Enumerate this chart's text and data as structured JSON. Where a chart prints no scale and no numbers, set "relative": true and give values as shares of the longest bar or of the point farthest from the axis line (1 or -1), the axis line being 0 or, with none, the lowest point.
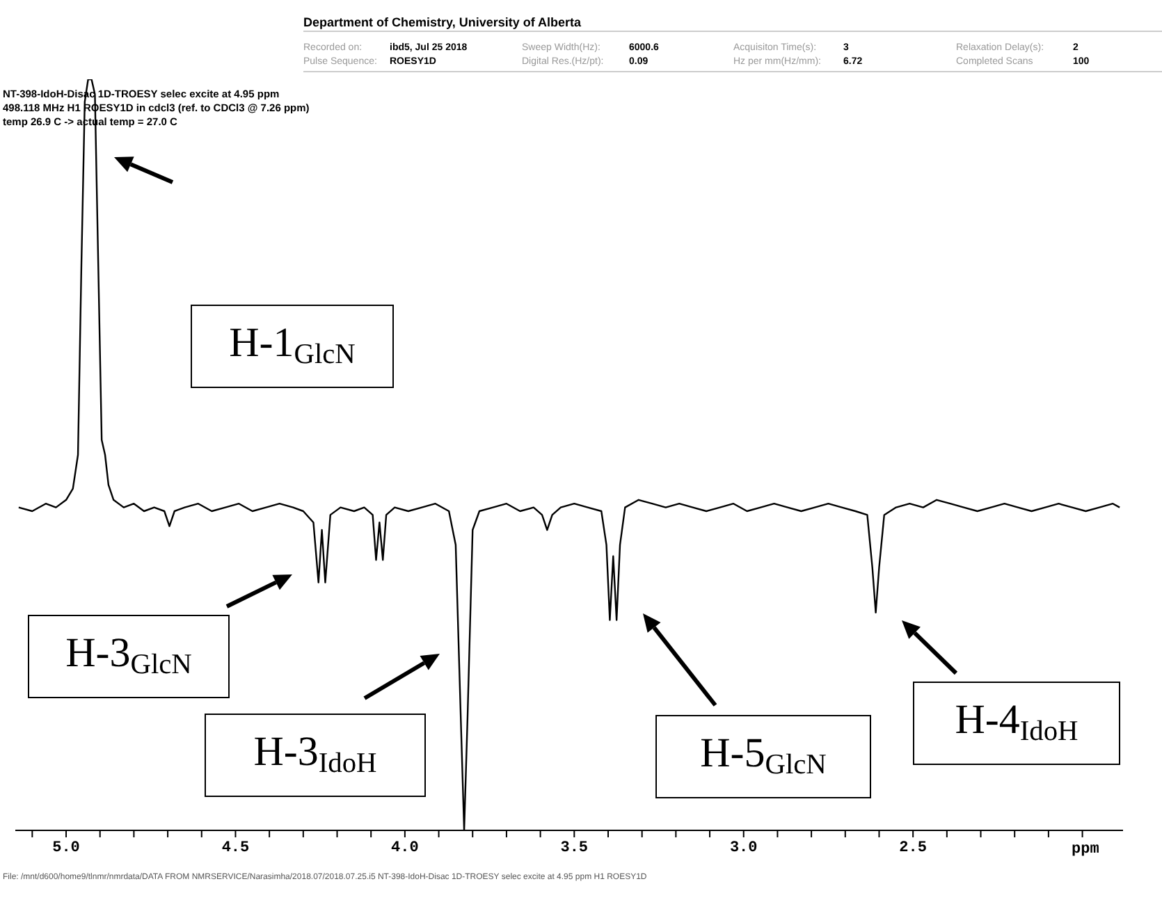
{
  "chart_data": {
    "type": "line",
    "relative": true,
    "color": "#000000",
    "line_style": "solid",
    "xlabel": "ppm",
    "xlim": [
      5.15,
      1.88
    ],
    "xticks": [
      {
        "value": 5.1,
        "label": null
      },
      {
        "value": 5,
        "label": "5.0"
      },
      {
        "value": 4.9,
        "label": null
      },
      {
        "value": 4.8,
        "label": null
      },
      {
        "value": 4.7,
        "label": null
      },
      {
        "value": 4.6,
        "label": null
      },
      {
        "value": 4.5,
        "label": "4.5"
      },
      {
        "value": 4.4,
        "label": null
      },
      {
        "value": 4.3,
        "label": null
      },
      {
        "value": 4.2,
        "label": null
      },
      {
        "value": 4.1,
        "label": null
      },
      {
        "value": 4,
        "label": "4.0"
      },
      {
        "value": 3.9,
        "label": null
      },
      {
        "value": 3.8,
        "label": null
      },
      {
        "value": 3.7,
        "label": null
      },
      {
        "value": 3.6,
        "label": null
      },
      {
        "value": 3.5,
        "label": "3.5"
      },
      {
        "value": 3.4,
        "label": null
      },
      {
        "value": 3.3,
        "label": null
      },
      {
        "value": 3.2,
        "label": null
      },
      {
        "value": 3.1,
        "label": null
      },
      {
        "value": 3,
        "label": "3.0"
      },
      {
        "value": 2.9,
        "label": null
      },
      {
        "value": 2.8,
        "label": null
      },
      {
        "value": 2.7,
        "label": null
      },
      {
        "value": 2.6,
        "label": null
      },
      {
        "value": 2.5,
        "label": "2.5"
      },
      {
        "value": 2.4,
        "label": null
      },
      {
        "value": 2.3,
        "label": null
      },
      {
        "value": 2.2,
        "label": null
      },
      {
        "value": 2.1,
        "label": null
      },
      {
        "value": 2,
        "label": null
      }
    ],
    "x": [
      5.14,
      5.1,
      5.06,
      5.03,
      5.0,
      4.98,
      4.965,
      4.955,
      4.945,
      4.935,
      4.925,
      4.915,
      4.905,
      4.895,
      4.885,
      4.875,
      4.86,
      4.83,
      4.8,
      4.77,
      4.74,
      4.71,
      4.695,
      4.68,
      4.65,
      4.61,
      4.57,
      4.53,
      4.49,
      4.45,
      4.41,
      4.37,
      4.33,
      4.3,
      4.27,
      4.255,
      4.245,
      4.235,
      4.22,
      4.19,
      4.15,
      4.12,
      4.095,
      4.085,
      4.075,
      4.065,
      4.055,
      4.03,
      3.99,
      3.95,
      3.91,
      3.87,
      3.85,
      3.835,
      3.825,
      3.815,
      3.8,
      3.78,
      3.74,
      3.7,
      3.66,
      3.62,
      3.595,
      3.58,
      3.565,
      3.54,
      3.5,
      3.46,
      3.42,
      3.405,
      3.395,
      3.385,
      3.375,
      3.365,
      3.35,
      3.31,
      3.27,
      3.23,
      3.19,
      3.15,
      3.11,
      3.07,
      3.03,
      2.99,
      2.95,
      2.91,
      2.87,
      2.83,
      2.79,
      2.75,
      2.71,
      2.67,
      2.635,
      2.62,
      2.61,
      2.6,
      2.585,
      2.55,
      2.51,
      2.47,
      2.43,
      2.39,
      2.35,
      2.31,
      2.27,
      2.23,
      2.19,
      2.15,
      2.11,
      2.07,
      2.03,
      1.99,
      1.95,
      1.91,
      1.89
    ],
    "values": [
      0.43,
      0.425,
      0.435,
      0.43,
      0.44,
      0.455,
      0.5,
      0.75,
      0.97,
      1,
      1,
      0.98,
      0.75,
      0.52,
      0.5,
      0.46,
      0.44,
      0.43,
      0.435,
      0.425,
      0.43,
      0.425,
      0.405,
      0.425,
      0.43,
      0.435,
      0.425,
      0.43,
      0.435,
      0.425,
      0.43,
      0.435,
      0.43,
      0.425,
      0.41,
      0.33,
      0.4,
      0.33,
      0.42,
      0.43,
      0.425,
      0.43,
      0.42,
      0.36,
      0.41,
      0.36,
      0.42,
      0.43,
      0.425,
      0.43,
      0.435,
      0.425,
      0.38,
      0.15,
      0,
      0.15,
      0.4,
      0.425,
      0.43,
      0.435,
      0.425,
      0.43,
      0.42,
      0.4,
      0.42,
      0.43,
      0.435,
      0.43,
      0.425,
      0.38,
      0.28,
      0.365,
      0.28,
      0.38,
      0.43,
      0.44,
      0.435,
      0.43,
      0.435,
      0.43,
      0.425,
      0.43,
      0.435,
      0.425,
      0.43,
      0.435,
      0.43,
      0.425,
      0.43,
      0.435,
      0.43,
      0.425,
      0.42,
      0.35,
      0.29,
      0.35,
      0.42,
      0.43,
      0.435,
      0.43,
      0.44,
      0.435,
      0.43,
      0.425,
      0.43,
      0.435,
      0.43,
      0.425,
      0.43,
      0.435,
      0.43,
      0.425,
      0.43,
      0.435,
      0.43
    ],
    "annotations": [
      "H-1$_{GlcN}$",
      "H-3$_{GlcN}$",
      "H-3$_{IdoH}$",
      "H-5$_{GlcN}$",
      "H-4$_{IdoH}$",
      "Department of Chemistry, University of Alberta",
      "Recorded on:",
      "ibd5, Jul 25 2018",
      "Pulse Sequence:",
      "ROESY1D",
      "Sweep Width(Hz):",
      "6000.6",
      "Digital Res.(Hz/pt):",
      "0.09",
      "Acquisiton Time(s):",
      "3",
      "Hz per mm(Hz/mm):",
      "6.72",
      "Relaxation Delay(s):",
      "2",
      "Completed Scans",
      "100",
      "NT-398-IdoH-Disac 1D-TROESY selec excite at 4.95 ppm",
      "498.118 MHz H1 ROESY1D in cdcl3 (ref. to CDCl3 @ 7.26 ppm)",
      "temp 26.9 C -> actual temp = 27.0 C",
      "File: /mnt/d600/home9/tlnmr/nmrdata/DATA FROM NMRSERVICE/Narasimha/2018.07/2018.07.25.i5 NT-398-IdoH-Disac 1D-TROESY selec excite at 4.95 ppm H1 ROESY1D"
    ]
  }
}
